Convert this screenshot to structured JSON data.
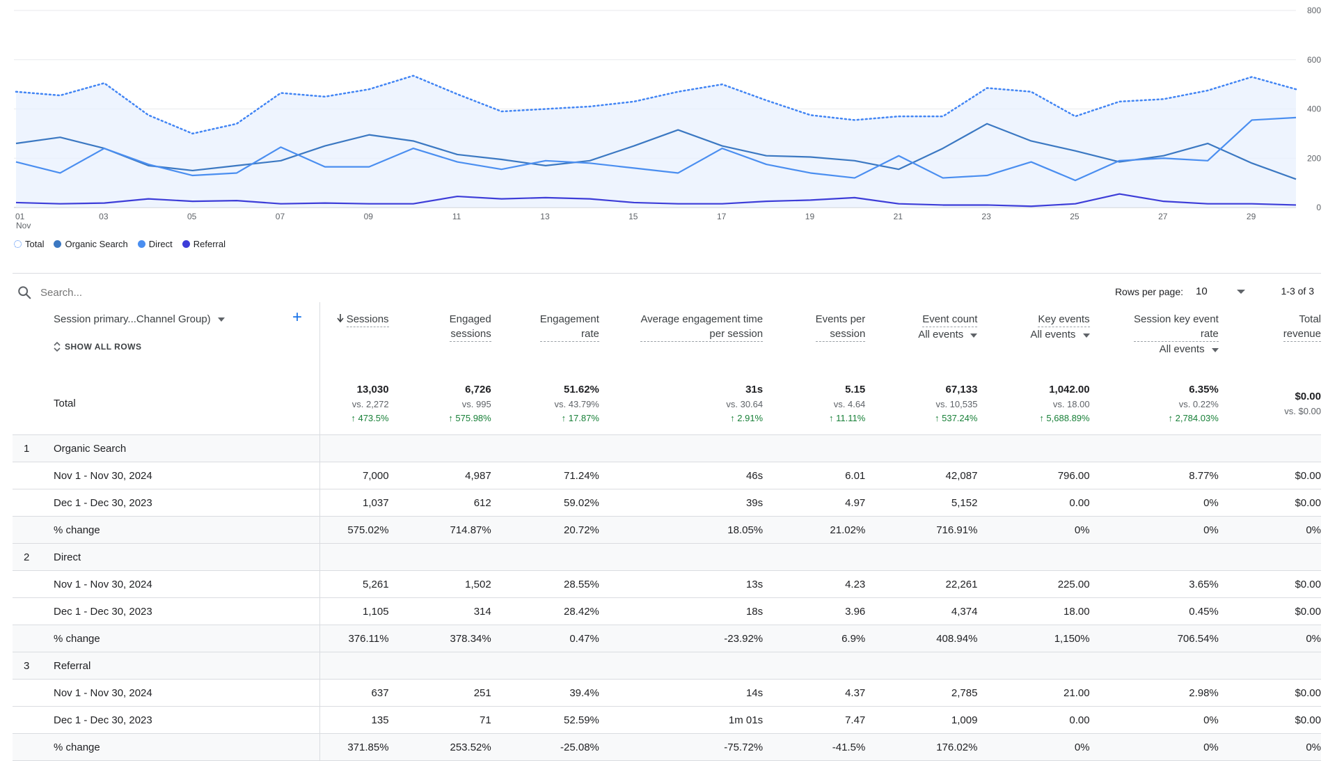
{
  "chart_data": {
    "type": "line",
    "x": [
      "01",
      "02",
      "03",
      "04",
      "05",
      "06",
      "07",
      "08",
      "09",
      "10",
      "11",
      "12",
      "13",
      "14",
      "15",
      "16",
      "17",
      "18",
      "19",
      "20",
      "21",
      "22",
      "23",
      "24",
      "25",
      "26",
      "27",
      "28",
      "29",
      "30"
    ],
    "x_tick_labels": [
      "01",
      "03",
      "05",
      "07",
      "09",
      "11",
      "13",
      "15",
      "17",
      "19",
      "21",
      "23",
      "25",
      "27",
      "29"
    ],
    "x_sublabel": "Nov",
    "ylim": [
      0,
      800
    ],
    "y_ticks": [
      "0",
      "200",
      "400",
      "600",
      "800"
    ],
    "grid": true,
    "legend_position": "bottom-left",
    "series": [
      {
        "name": "Total",
        "style": "dotted",
        "fill": true,
        "color": "#4285f4",
        "values": [
          470,
          455,
          505,
          375,
          300,
          340,
          465,
          450,
          480,
          535,
          460,
          390,
          400,
          410,
          430,
          470,
          500,
          435,
          375,
          355,
          370,
          370,
          485,
          470,
          370,
          430,
          440,
          475,
          530,
          480
        ]
      },
      {
        "name": "Organic Search",
        "style": "solid",
        "color": "#3b78c2",
        "values": [
          260,
          285,
          240,
          170,
          150,
          170,
          190,
          250,
          295,
          270,
          215,
          195,
          170,
          190,
          250,
          315,
          250,
          210,
          205,
          190,
          155,
          240,
          340,
          270,
          230,
          185,
          210,
          260,
          180,
          115
        ]
      },
      {
        "name": "Direct",
        "style": "solid",
        "color": "#4a8ef0",
        "values": [
          185,
          140,
          240,
          175,
          130,
          140,
          245,
          165,
          165,
          240,
          185,
          155,
          190,
          180,
          160,
          140,
          240,
          175,
          140,
          120,
          210,
          120,
          130,
          185,
          110,
          190,
          200,
          190,
          355,
          365
        ]
      },
      {
        "name": "Referral",
        "style": "solid",
        "color": "#3d3dd8",
        "values": [
          20,
          15,
          18,
          35,
          25,
          28,
          15,
          18,
          15,
          15,
          45,
          35,
          40,
          35,
          20,
          15,
          15,
          25,
          30,
          40,
          15,
          10,
          10,
          5,
          15,
          55,
          25,
          15,
          15,
          10
        ]
      }
    ]
  },
  "legend": [
    {
      "label": "Total",
      "color": "#4285f4",
      "dashed": true
    },
    {
      "label": "Organic Search",
      "color": "#3b78c2"
    },
    {
      "label": "Direct",
      "color": "#4a8ef0"
    },
    {
      "label": "Referral",
      "color": "#3d3dd8"
    }
  ],
  "search": {
    "placeholder": "Search..."
  },
  "pagination": {
    "rows_label": "Rows per page:",
    "rows_value": "10",
    "range": "1-3 of 3"
  },
  "dimension": {
    "title": "Session primary...Channel Group)",
    "show_all": "SHOW ALL ROWS",
    "add": "+"
  },
  "columns": [
    {
      "l1": "Sessions",
      "l2": "",
      "sub": "",
      "sorted": true
    },
    {
      "l1": "Engaged",
      "l2": "sessions",
      "sub": ""
    },
    {
      "l1": "Engagement",
      "l2": "rate",
      "sub": ""
    },
    {
      "l1": "Average engagement time",
      "l2": "per session",
      "sub": ""
    },
    {
      "l1": "Events per",
      "l2": "session",
      "sub": ""
    },
    {
      "l1": "Event count",
      "l2": "",
      "sub": "All events"
    },
    {
      "l1": "Key events",
      "l2": "",
      "sub": "All events"
    },
    {
      "l1": "Session key event",
      "l2": "rate",
      "sub": "All events"
    },
    {
      "l1": "Total",
      "l2": "revenue",
      "sub": ""
    }
  ],
  "totals": {
    "label": "Total",
    "cells": [
      {
        "v": "13,030",
        "vs": "vs. 2,272",
        "chg": "↑ 473.5%"
      },
      {
        "v": "6,726",
        "vs": "vs. 995",
        "chg": "↑ 575.98%"
      },
      {
        "v": "51.62%",
        "vs": "vs. 43.79%",
        "chg": "↑ 17.87%"
      },
      {
        "v": "31s",
        "vs": "vs. 30.64",
        "chg": "↑ 2.91%"
      },
      {
        "v": "5.15",
        "vs": "vs. 4.64",
        "chg": "↑ 11.11%"
      },
      {
        "v": "67,133",
        "vs": "vs. 10,535",
        "chg": "↑ 537.24%"
      },
      {
        "v": "1,042.00",
        "vs": "vs. 18.00",
        "chg": "↑ 5,688.89%"
      },
      {
        "v": "6.35%",
        "vs": "vs. 0.22%",
        "chg": "↑ 2,784.03%"
      },
      {
        "v": "$0.00",
        "vs": "vs. $0.00",
        "chg": ""
      }
    ]
  },
  "groups": [
    {
      "index": "1",
      "name": "Organic Search",
      "rows": [
        {
          "label": "Nov 1 - Nov 30, 2024",
          "cells": [
            "7,000",
            "4,987",
            "71.24%",
            "46s",
            "6.01",
            "42,087",
            "796.00",
            "8.77%",
            "$0.00"
          ]
        },
        {
          "label": "Dec 1 - Dec 30, 2023",
          "cells": [
            "1,037",
            "612",
            "59.02%",
            "39s",
            "4.97",
            "5,152",
            "0.00",
            "0%",
            "$0.00"
          ]
        },
        {
          "label": "% change",
          "cells": [
            "575.02%",
            "714.87%",
            "20.72%",
            "18.05%",
            "21.02%",
            "716.91%",
            "0%",
            "0%",
            "0%"
          ]
        }
      ]
    },
    {
      "index": "2",
      "name": "Direct",
      "rows": [
        {
          "label": "Nov 1 - Nov 30, 2024",
          "cells": [
            "5,261",
            "1,502",
            "28.55%",
            "13s",
            "4.23",
            "22,261",
            "225.00",
            "3.65%",
            "$0.00"
          ]
        },
        {
          "label": "Dec 1 - Dec 30, 2023",
          "cells": [
            "1,105",
            "314",
            "28.42%",
            "18s",
            "3.96",
            "4,374",
            "18.00",
            "0.45%",
            "$0.00"
          ]
        },
        {
          "label": "% change",
          "cells": [
            "376.11%",
            "378.34%",
            "0.47%",
            "-23.92%",
            "6.9%",
            "408.94%",
            "1,150%",
            "706.54%",
            "0%"
          ]
        }
      ]
    },
    {
      "index": "3",
      "name": "Referral",
      "rows": [
        {
          "label": "Nov 1 - Nov 30, 2024",
          "cells": [
            "637",
            "251",
            "39.4%",
            "14s",
            "4.37",
            "2,785",
            "21.00",
            "2.98%",
            "$0.00"
          ]
        },
        {
          "label": "Dec 1 - Dec 30, 2023",
          "cells": [
            "135",
            "71",
            "52.59%",
            "1m 01s",
            "7.47",
            "1,009",
            "0.00",
            "0%",
            "$0.00"
          ]
        },
        {
          "label": "% change",
          "cells": [
            "371.85%",
            "253.52%",
            "-25.08%",
            "-75.72%",
            "-41.5%",
            "176.02%",
            "0%",
            "0%",
            "0%"
          ]
        }
      ]
    }
  ]
}
